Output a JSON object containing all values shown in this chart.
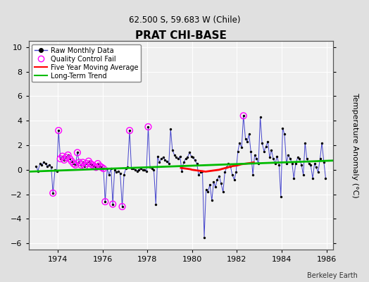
{
  "title": "PRAT CHI-BASE",
  "subtitle": "62.500 S, 59.683 W (Chile)",
  "ylabel": "Temperature Anomaly (°C)",
  "credit": "Berkeley Earth",
  "ylim": [
    -6.5,
    10.5
  ],
  "xlim": [
    1972.7,
    1986.3
  ],
  "xticks": [
    1974,
    1976,
    1978,
    1980,
    1982,
    1984,
    1986
  ],
  "yticks": [
    -6,
    -4,
    -2,
    0,
    2,
    4,
    6,
    8,
    10
  ],
  "bg_color": "#e0e0e0",
  "plot_bg_color": "#f0f0f0",
  "grid_color": "#ffffff",
  "raw_line_color": "#4444cc",
  "raw_dot_color": "#000000",
  "qc_fail_color": "#ff00ff",
  "moving_avg_color": "#ff0000",
  "trend_color": "#00bb00",
  "raw_data": [
    [
      1973.04,
      0.3
    ],
    [
      1973.12,
      -0.1
    ],
    [
      1973.21,
      0.5
    ],
    [
      1973.29,
      0.4
    ],
    [
      1973.38,
      0.6
    ],
    [
      1973.46,
      0.5
    ],
    [
      1973.54,
      0.3
    ],
    [
      1973.62,
      0.4
    ],
    [
      1973.71,
      0.2
    ],
    [
      1973.79,
      -1.9
    ],
    [
      1973.88,
      0.0
    ],
    [
      1973.96,
      -0.1
    ],
    [
      1974.04,
      3.2
    ],
    [
      1974.12,
      0.9
    ],
    [
      1974.21,
      1.1
    ],
    [
      1974.29,
      0.8
    ],
    [
      1974.38,
      1.0
    ],
    [
      1974.46,
      1.2
    ],
    [
      1974.54,
      0.9
    ],
    [
      1974.62,
      0.7
    ],
    [
      1974.71,
      0.5
    ],
    [
      1974.79,
      0.4
    ],
    [
      1974.88,
      1.4
    ],
    [
      1974.96,
      0.6
    ],
    [
      1975.04,
      0.4
    ],
    [
      1975.12,
      0.6
    ],
    [
      1975.21,
      0.3
    ],
    [
      1975.29,
      0.5
    ],
    [
      1975.38,
      0.7
    ],
    [
      1975.46,
      0.5
    ],
    [
      1975.54,
      0.4
    ],
    [
      1975.62,
      0.3
    ],
    [
      1975.71,
      0.2
    ],
    [
      1975.79,
      0.5
    ],
    [
      1975.88,
      0.3
    ],
    [
      1975.96,
      0.2
    ],
    [
      1976.04,
      0.1
    ],
    [
      1976.12,
      -2.6
    ],
    [
      1976.21,
      0.1
    ],
    [
      1976.29,
      -0.4
    ],
    [
      1976.38,
      0.1
    ],
    [
      1976.46,
      -2.8
    ],
    [
      1976.54,
      0.0
    ],
    [
      1976.62,
      -0.2
    ],
    [
      1976.71,
      -0.1
    ],
    [
      1976.79,
      -0.3
    ],
    [
      1976.88,
      -3.0
    ],
    [
      1976.96,
      -0.4
    ],
    [
      1977.04,
      0.1
    ],
    [
      1977.12,
      0.2
    ],
    [
      1977.21,
      3.2
    ],
    [
      1977.29,
      0.1
    ],
    [
      1977.38,
      0.1
    ],
    [
      1977.46,
      0.0
    ],
    [
      1977.54,
      -0.1
    ],
    [
      1977.62,
      0.0
    ],
    [
      1977.71,
      0.1
    ],
    [
      1977.79,
      0.0
    ],
    [
      1977.88,
      0.0
    ],
    [
      1977.96,
      -0.1
    ],
    [
      1978.04,
      3.5
    ],
    [
      1978.12,
      0.2
    ],
    [
      1978.21,
      0.1
    ],
    [
      1978.29,
      0.0
    ],
    [
      1978.38,
      -2.8
    ],
    [
      1978.46,
      1.1
    ],
    [
      1978.54,
      0.6
    ],
    [
      1978.62,
      0.9
    ],
    [
      1978.71,
      1.0
    ],
    [
      1978.79,
      0.8
    ],
    [
      1978.88,
      0.7
    ],
    [
      1978.96,
      0.5
    ],
    [
      1979.04,
      3.3
    ],
    [
      1979.12,
      1.6
    ],
    [
      1979.21,
      1.2
    ],
    [
      1979.29,
      1.0
    ],
    [
      1979.38,
      0.9
    ],
    [
      1979.46,
      1.1
    ],
    [
      1979.54,
      -0.1
    ],
    [
      1979.62,
      0.6
    ],
    [
      1979.71,
      0.9
    ],
    [
      1979.79,
      1.0
    ],
    [
      1979.88,
      1.4
    ],
    [
      1979.96,
      1.1
    ],
    [
      1980.04,
      1.0
    ],
    [
      1980.12,
      0.8
    ],
    [
      1980.21,
      0.5
    ],
    [
      1980.29,
      -0.4
    ],
    [
      1980.38,
      -0.2
    ],
    [
      1980.46,
      -0.1
    ],
    [
      1980.54,
      -5.5
    ],
    [
      1980.62,
      -1.6
    ],
    [
      1980.71,
      -1.8
    ],
    [
      1980.79,
      -1.2
    ],
    [
      1980.88,
      -2.5
    ],
    [
      1980.96,
      -1.0
    ],
    [
      1981.04,
      -1.4
    ],
    [
      1981.12,
      -0.8
    ],
    [
      1981.21,
      -0.5
    ],
    [
      1981.29,
      -1.1
    ],
    [
      1981.38,
      -1.8
    ],
    [
      1981.46,
      -0.2
    ],
    [
      1981.54,
      0.2
    ],
    [
      1981.62,
      0.5
    ],
    [
      1981.71,
      0.3
    ],
    [
      1981.79,
      -0.4
    ],
    [
      1981.88,
      -0.8
    ],
    [
      1981.96,
      -0.2
    ],
    [
      1982.04,
      1.5
    ],
    [
      1982.12,
      2.2
    ],
    [
      1982.21,
      1.8
    ],
    [
      1982.29,
      4.4
    ],
    [
      1982.38,
      2.5
    ],
    [
      1982.46,
      2.3
    ],
    [
      1982.54,
      2.9
    ],
    [
      1982.62,
      1.5
    ],
    [
      1982.71,
      -0.4
    ],
    [
      1982.79,
      1.2
    ],
    [
      1982.88,
      0.9
    ],
    [
      1982.96,
      0.5
    ],
    [
      1983.04,
      4.3
    ],
    [
      1983.12,
      2.2
    ],
    [
      1983.21,
      1.5
    ],
    [
      1983.29,
      1.9
    ],
    [
      1983.38,
      2.3
    ],
    [
      1983.46,
      1.0
    ],
    [
      1983.54,
      1.6
    ],
    [
      1983.62,
      0.9
    ],
    [
      1983.71,
      0.5
    ],
    [
      1983.79,
      1.1
    ],
    [
      1983.88,
      0.4
    ],
    [
      1983.96,
      -2.2
    ],
    [
      1984.04,
      3.4
    ],
    [
      1984.12,
      2.9
    ],
    [
      1984.21,
      0.5
    ],
    [
      1984.29,
      1.2
    ],
    [
      1984.38,
      0.9
    ],
    [
      1984.46,
      0.5
    ],
    [
      1984.54,
      -0.7
    ],
    [
      1984.62,
      0.5
    ],
    [
      1984.71,
      1.0
    ],
    [
      1984.79,
      0.9
    ],
    [
      1984.88,
      0.4
    ],
    [
      1984.96,
      -0.4
    ],
    [
      1985.04,
      2.2
    ],
    [
      1985.12,
      0.9
    ],
    [
      1985.21,
      0.5
    ],
    [
      1985.29,
      0.4
    ],
    [
      1985.38,
      -0.7
    ],
    [
      1985.46,
      0.5
    ],
    [
      1985.54,
      0.2
    ],
    [
      1985.62,
      -0.2
    ],
    [
      1985.71,
      0.9
    ],
    [
      1985.79,
      2.2
    ],
    [
      1985.88,
      0.6
    ],
    [
      1985.96,
      -0.7
    ]
  ],
  "qc_fail_points": [
    [
      1973.79,
      -1.9
    ],
    [
      1974.04,
      3.2
    ],
    [
      1974.12,
      0.9
    ],
    [
      1974.21,
      1.1
    ],
    [
      1974.29,
      0.8
    ],
    [
      1974.38,
      1.0
    ],
    [
      1974.46,
      1.2
    ],
    [
      1974.54,
      0.9
    ],
    [
      1974.62,
      0.7
    ],
    [
      1974.71,
      0.5
    ],
    [
      1974.79,
      0.4
    ],
    [
      1974.88,
      1.4
    ],
    [
      1974.96,
      0.6
    ],
    [
      1975.04,
      0.4
    ],
    [
      1975.12,
      0.6
    ],
    [
      1975.21,
      0.3
    ],
    [
      1975.29,
      0.5
    ],
    [
      1975.38,
      0.7
    ],
    [
      1975.46,
      0.5
    ],
    [
      1975.54,
      0.4
    ],
    [
      1975.62,
      0.3
    ],
    [
      1975.71,
      0.2
    ],
    [
      1975.79,
      0.5
    ],
    [
      1975.88,
      0.3
    ],
    [
      1975.96,
      0.2
    ],
    [
      1976.04,
      0.1
    ],
    [
      1976.12,
      -2.6
    ],
    [
      1976.46,
      -2.8
    ],
    [
      1976.88,
      -3.0
    ],
    [
      1977.21,
      3.2
    ],
    [
      1978.04,
      3.5
    ],
    [
      1982.29,
      4.4
    ]
  ],
  "moving_avg": [
    [
      1979.5,
      0.15
    ],
    [
      1979.7,
      0.1
    ],
    [
      1979.9,
      0.05
    ],
    [
      1980.0,
      0.0
    ],
    [
      1980.2,
      -0.05
    ],
    [
      1980.4,
      -0.1
    ],
    [
      1980.6,
      -0.15
    ],
    [
      1980.8,
      -0.1
    ],
    [
      1981.0,
      -0.05
    ],
    [
      1981.2,
      0.0
    ],
    [
      1981.4,
      0.1
    ],
    [
      1981.6,
      0.2
    ],
    [
      1981.8,
      0.3
    ],
    [
      1982.0,
      0.35
    ],
    [
      1982.2,
      0.45
    ],
    [
      1982.4,
      0.5
    ],
    [
      1982.6,
      0.55
    ],
    [
      1982.75,
      0.6
    ]
  ],
  "trend_x": [
    1972.7,
    1986.3
  ],
  "trend_y": [
    -0.15,
    0.75
  ]
}
